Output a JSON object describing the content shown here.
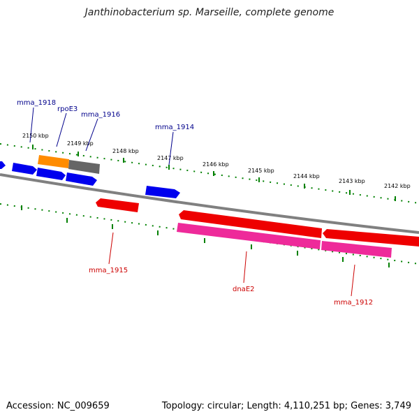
{
  "title": "Janthinobacterium sp. Marseille, complete genome",
  "footer": {
    "accession": "Accession: NC_009659",
    "summary": "Topology: circular; Length: 4,110,251 bp; Genes: 3,749"
  },
  "colors": {
    "backbone": "#808080",
    "ticks": "#008000",
    "forward_gene": "#0000ee",
    "reverse_gene": "#ee0000",
    "rrna": "#ff8c00",
    "pseudogene": "#666666",
    "cds_pink": "#ee2a9a",
    "label_forward": "#00008b",
    "label_reverse": "#cc0000"
  },
  "scale_labels": [
    "2150 kbp",
    "2149 kbp",
    "2148 kbp",
    "2147 kbp",
    "2146 kbp",
    "2145 kbp",
    "2144 kbp",
    "2143 kbp",
    "2142 kbp"
  ],
  "gene_labels": {
    "forward": [
      "mma_1918",
      "rpoE3",
      "mma_1916",
      "mma_1914"
    ],
    "reverse": [
      "mma_1915",
      "dnaE2",
      "mma_1912"
    ]
  }
}
